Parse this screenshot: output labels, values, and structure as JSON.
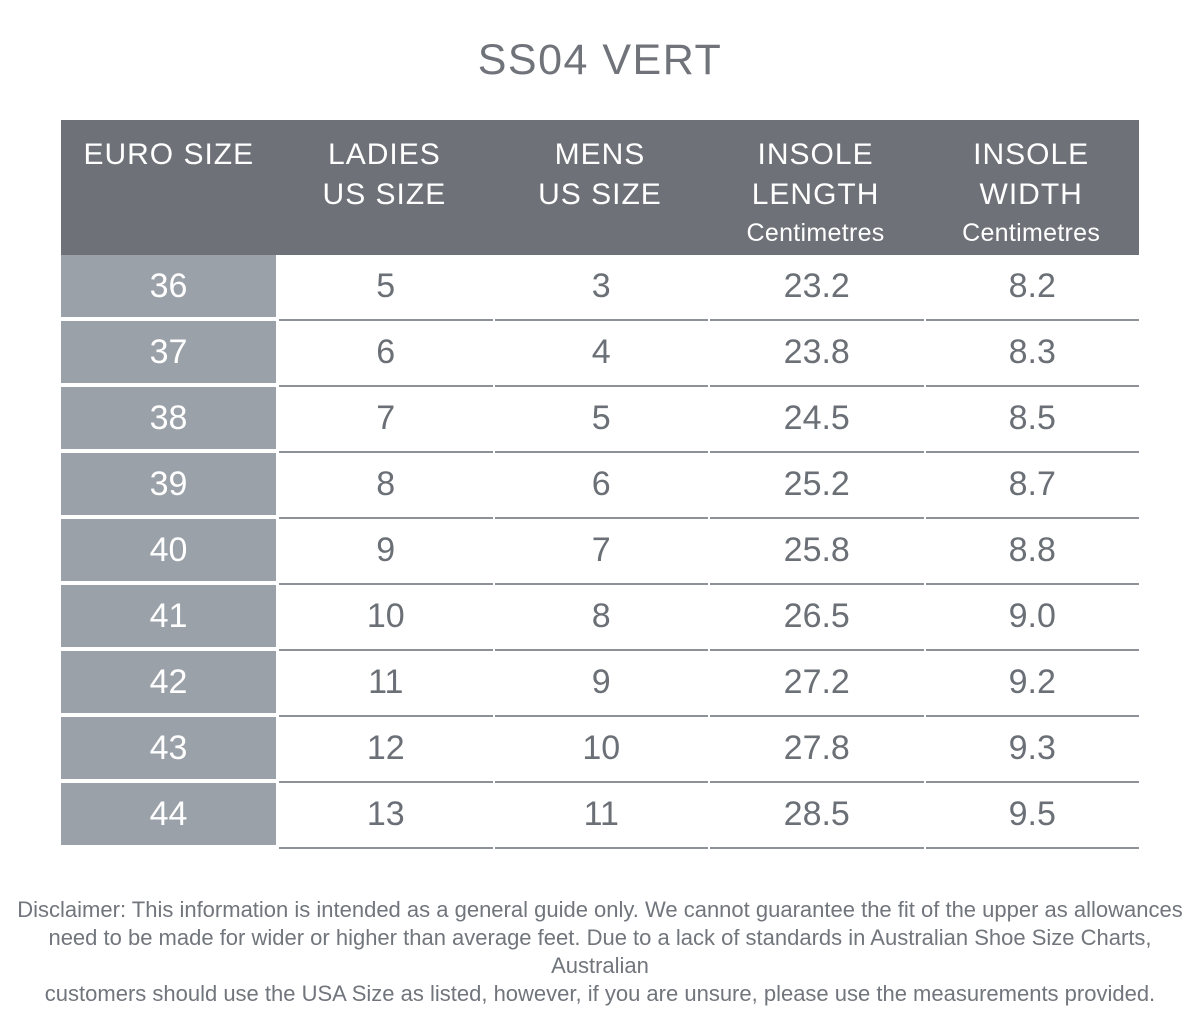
{
  "title": "SS04 VERT",
  "colors": {
    "header_bg": "#6e7177",
    "row_label_bg": "#9ba1a8",
    "header_text": "#ffffff",
    "data_text": "#6b6f76",
    "row_separator": "#8c9298",
    "title_text": "#70747a",
    "disclaimer_text": "#71757c"
  },
  "table": {
    "columns": [
      {
        "line1": "EURO SIZE",
        "line2": "",
        "unit": ""
      },
      {
        "line1": "LADIES",
        "line2": "US SIZE",
        "unit": ""
      },
      {
        "line1": "MENS",
        "line2": "US SIZE",
        "unit": ""
      },
      {
        "line1": "INSOLE",
        "line2": "LENGTH",
        "unit": "Centimetres"
      },
      {
        "line1": "INSOLE",
        "line2": "WIDTH",
        "unit": "Centimetres"
      }
    ],
    "rows": [
      {
        "euro": "36",
        "ladies": "5",
        "mens": "3",
        "length": "23.2",
        "width": "8.2"
      },
      {
        "euro": "37",
        "ladies": "6",
        "mens": "4",
        "length": "23.8",
        "width": "8.3"
      },
      {
        "euro": "38",
        "ladies": "7",
        "mens": "5",
        "length": "24.5",
        "width": "8.5"
      },
      {
        "euro": "39",
        "ladies": "8",
        "mens": "6",
        "length": "25.2",
        "width": "8.7"
      },
      {
        "euro": "40",
        "ladies": "9",
        "mens": "7",
        "length": "25.8",
        "width": "8.8"
      },
      {
        "euro": "41",
        "ladies": "10",
        "mens": "8",
        "length": "26.5",
        "width": "9.0"
      },
      {
        "euro": "42",
        "ladies": "11",
        "mens": "9",
        "length": "27.2",
        "width": "9.2"
      },
      {
        "euro": "43",
        "ladies": "12",
        "mens": "10",
        "length": "27.8",
        "width": "9.3"
      },
      {
        "euro": "44",
        "ladies": "13",
        "mens": "11",
        "length": "28.5",
        "width": "9.5"
      }
    ]
  },
  "disclaimer": {
    "lines": [
      "Disclaimer: This information is intended as a general guide only. We cannot guarantee the fit of the upper as allowances",
      "need to be made for wider or higher than average feet. Due to a lack of standards in Australian Shoe Size Charts, Australian",
      "customers should use the USA Size as listed, however, if you are unsure, please use the measurements provided."
    ]
  },
  "chart_data": {
    "type": "table",
    "title": "SS04 VERT",
    "columns": [
      "EURO SIZE",
      "LADIES US SIZE",
      "MENS US SIZE",
      "INSOLE LENGTH (Centimetres)",
      "INSOLE WIDTH (Centimetres)"
    ],
    "rows": [
      [
        36,
        5,
        3,
        23.2,
        8.2
      ],
      [
        37,
        6,
        4,
        23.8,
        8.3
      ],
      [
        38,
        7,
        5,
        24.5,
        8.5
      ],
      [
        39,
        8,
        6,
        25.2,
        8.7
      ],
      [
        40,
        9,
        7,
        25.8,
        8.8
      ],
      [
        41,
        10,
        8,
        26.5,
        9.0
      ],
      [
        42,
        11,
        9,
        27.2,
        9.2
      ],
      [
        43,
        12,
        10,
        27.8,
        9.3
      ],
      [
        44,
        13,
        11,
        28.5,
        9.5
      ]
    ]
  }
}
